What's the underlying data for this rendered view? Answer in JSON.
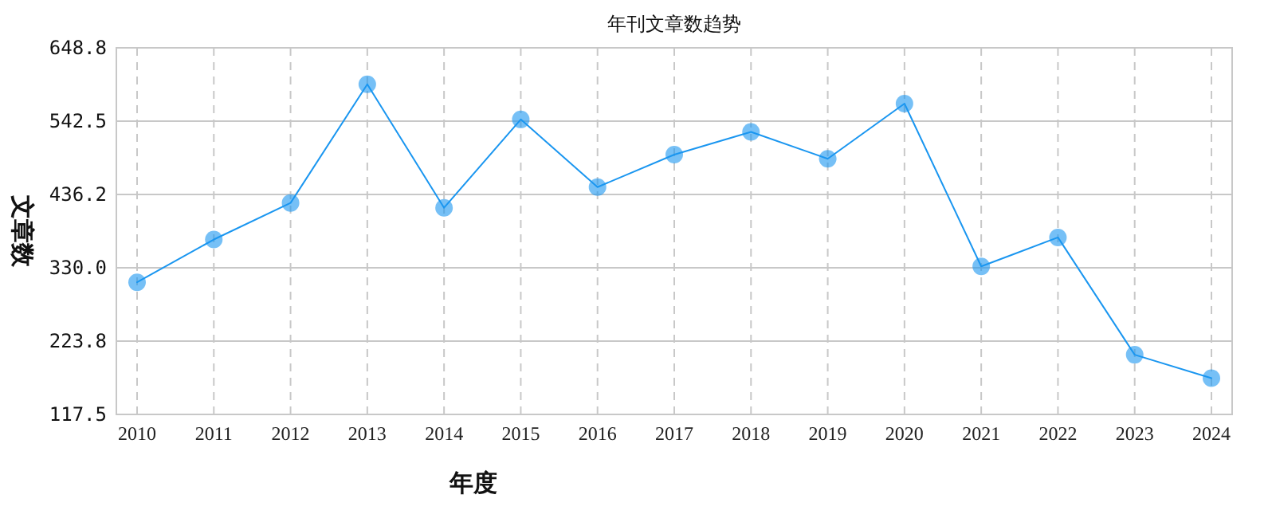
{
  "chart_data": {
    "type": "line",
    "title": "年刊文章数趋势",
    "xlabel": "年度",
    "ylabel": "文章数",
    "categories": [
      "2010",
      "2011",
      "2012",
      "2013",
      "2014",
      "2015",
      "2016",
      "2017",
      "2018",
      "2019",
      "2020",
      "2021",
      "2022",
      "2023",
      "2024"
    ],
    "series": [
      {
        "color": "#1a96f0",
        "values": [
          309,
          371,
          424,
          596,
          417,
          545,
          447,
          494,
          527,
          488,
          568,
          332,
          374,
          204,
          170
        ]
      }
    ],
    "ylim": [
      117.5,
      648.8
    ],
    "yticks": [
      117.5,
      223.8,
      {
        "value": 330,
        "label": "330.0"
      },
      436.2,
      542.5,
      648.8
    ],
    "grid": true,
    "marker": "circle",
    "line_style": "solid"
  }
}
